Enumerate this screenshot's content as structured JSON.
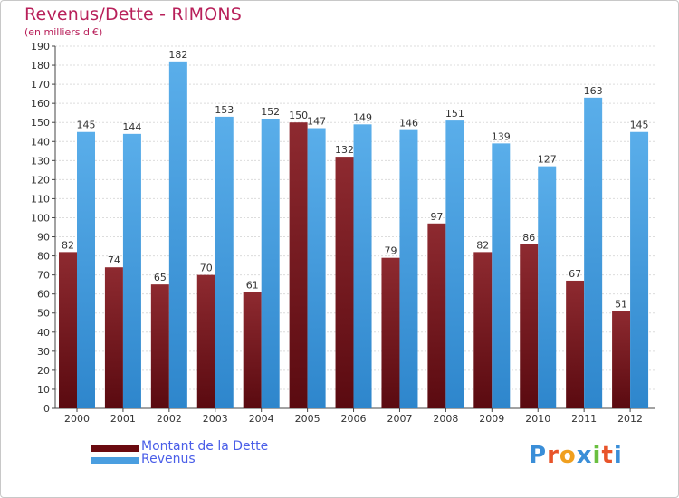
{
  "chart_data": {
    "type": "bar",
    "title": "Revenus/Dette - RIMONS",
    "subtitle": "(en milliers d'€)",
    "categories": [
      "2000",
      "2001",
      "2002",
      "2003",
      "2004",
      "2005",
      "2006",
      "2007",
      "2008",
      "2009",
      "2010",
      "2011",
      "2012"
    ],
    "series": [
      {
        "name": "Montant de la Dette",
        "color": "#7a1a1f",
        "values": [
          82,
          74,
          65,
          70,
          61,
          150,
          132,
          79,
          97,
          82,
          86,
          67,
          51
        ]
      },
      {
        "name": "Revenus",
        "color": "#4a9ee0",
        "values": [
          145,
          144,
          182,
          153,
          152,
          147,
          149,
          146,
          151,
          139,
          127,
          163,
          145
        ]
      }
    ],
    "ylim": [
      0,
      190
    ],
    "ytick_step": 10,
    "grid": true,
    "xlabel": "",
    "ylabel": "",
    "legend": "bottom-left"
  },
  "legend": {
    "debt_label": "Montant de la Dette",
    "revenue_label": "Revenus"
  },
  "brand": {
    "letters": [
      "P",
      "r",
      "o",
      "x",
      "i",
      "t",
      "i"
    ],
    "colors": [
      "#3a8ed8",
      "#e8542a",
      "#f0a020",
      "#3a8ed8",
      "#6abf40",
      "#e8542a",
      "#3a8ed8"
    ]
  }
}
